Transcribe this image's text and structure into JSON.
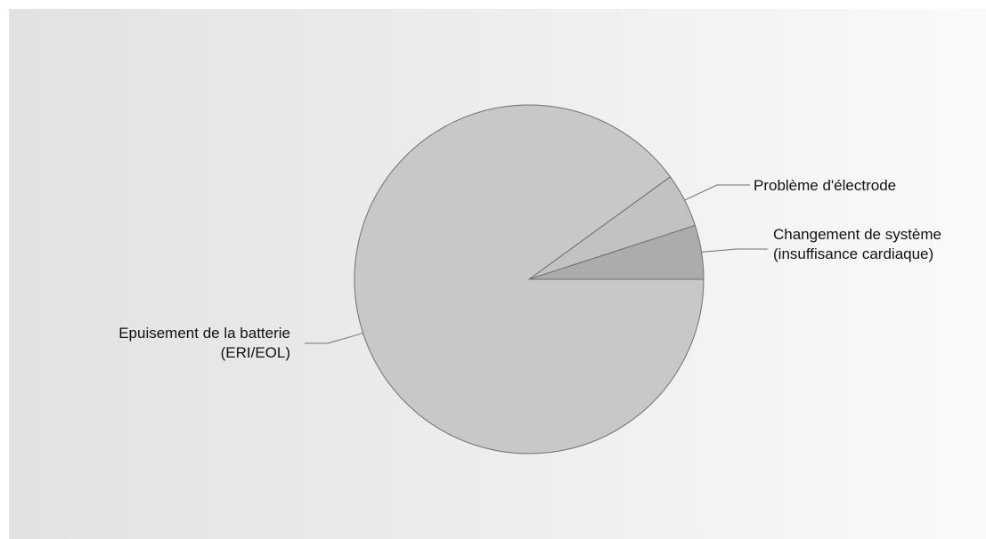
{
  "chart_data": {
    "type": "pie",
    "slices": [
      {
        "label": [
          "Epuisement de la batterie",
          "(ERI/EOL)"
        ],
        "value": 90,
        "color": "#c8c8c8"
      },
      {
        "label": [
          "Problème d'électrode"
        ],
        "value": 5,
        "color": "#c2c2c2"
      },
      {
        "label": [
          "Changement de système",
          "(insuffisance cardiaque)"
        ],
        "value": 5,
        "color": "#acacac"
      }
    ],
    "legend": "none"
  }
}
